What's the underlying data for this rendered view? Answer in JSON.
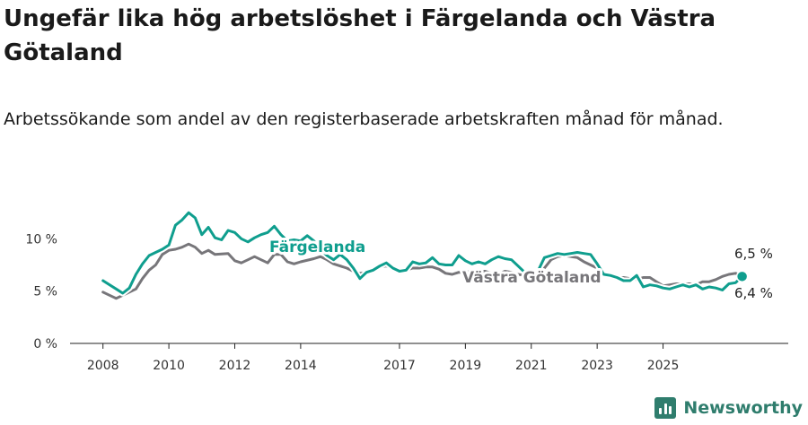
{
  "header": {
    "title": "Ungefär lika hög arbetslöshet i Färgelanda och Västra Götaland",
    "subtitle": "Arbetssökande som andel av den registerbaserade arbetskraften månad för månad."
  },
  "brand": {
    "name": "Newsworthy",
    "icon": "bar-chart-logo-icon"
  },
  "chart_data": {
    "type": "line",
    "y_ticks": [
      0,
      5,
      10
    ],
    "y_tick_labels": [
      "0 %",
      "5 %",
      "10 %"
    ],
    "ylim": [
      0,
      12
    ],
    "x_ticks": [
      2008,
      2010,
      2012,
      2014,
      2017,
      2019,
      2021,
      2023,
      2025
    ],
    "x_tick_labels": [
      "2008",
      "2010",
      "2012",
      "2014",
      "2017",
      "2019",
      "2021",
      "2023",
      "2025"
    ],
    "grid": "horizontal-baseline",
    "legend": "inline-labels",
    "colors": {
      "Färgelanda": "#0f9e8e",
      "Västra Götaland": "#77767a"
    },
    "series": [
      {
        "name": "Färgelanda",
        "end_label": "6,4 %",
        "points": [
          [
            2008.0,
            6.0
          ],
          [
            2008.4,
            5.2
          ],
          [
            2008.6,
            4.8
          ],
          [
            2008.8,
            5.3
          ],
          [
            2009.0,
            6.6
          ],
          [
            2009.2,
            7.6
          ],
          [
            2009.4,
            8.4
          ],
          [
            2009.6,
            8.7
          ],
          [
            2009.8,
            9.0
          ],
          [
            2010.0,
            9.4
          ],
          [
            2010.2,
            11.3
          ],
          [
            2010.4,
            11.8
          ],
          [
            2010.6,
            12.5
          ],
          [
            2010.8,
            12.0
          ],
          [
            2011.0,
            10.4
          ],
          [
            2011.2,
            11.1
          ],
          [
            2011.4,
            10.1
          ],
          [
            2011.6,
            9.9
          ],
          [
            2011.8,
            10.8
          ],
          [
            2012.0,
            10.6
          ],
          [
            2012.2,
            10.0
          ],
          [
            2012.4,
            9.7
          ],
          [
            2012.6,
            10.1
          ],
          [
            2012.8,
            10.4
          ],
          [
            2013.0,
            10.6
          ],
          [
            2013.2,
            11.2
          ],
          [
            2013.4,
            10.4
          ],
          [
            2013.6,
            9.8
          ],
          [
            2013.8,
            9.9
          ],
          [
            2014.0,
            9.8
          ],
          [
            2014.2,
            10.3
          ],
          [
            2014.4,
            9.8
          ],
          [
            2014.6,
            9.0
          ],
          [
            2014.8,
            8.4
          ],
          [
            2015.0,
            8.0
          ],
          [
            2015.2,
            8.5
          ],
          [
            2015.4,
            8.0
          ],
          [
            2015.6,
            7.2
          ],
          [
            2015.8,
            6.2
          ],
          [
            2016.0,
            6.8
          ],
          [
            2016.2,
            7.0
          ],
          [
            2016.4,
            7.4
          ],
          [
            2016.6,
            7.7
          ],
          [
            2016.8,
            7.2
          ],
          [
            2017.0,
            6.9
          ],
          [
            2017.2,
            7.0
          ],
          [
            2017.4,
            7.8
          ],
          [
            2017.6,
            7.6
          ],
          [
            2017.8,
            7.7
          ],
          [
            2018.0,
            8.2
          ],
          [
            2018.2,
            7.6
          ],
          [
            2018.4,
            7.5
          ],
          [
            2018.6,
            7.5
          ],
          [
            2018.8,
            8.4
          ],
          [
            2019.0,
            7.9
          ],
          [
            2019.2,
            7.6
          ],
          [
            2019.4,
            7.8
          ],
          [
            2019.6,
            7.6
          ],
          [
            2019.8,
            8.0
          ],
          [
            2020.0,
            8.3
          ],
          [
            2020.2,
            8.1
          ],
          [
            2020.4,
            8.0
          ],
          [
            2020.6,
            7.4
          ],
          [
            2020.8,
            6.8
          ],
          [
            2021.0,
            6.5
          ],
          [
            2021.2,
            6.9
          ],
          [
            2021.4,
            8.2
          ],
          [
            2021.6,
            8.4
          ],
          [
            2021.8,
            8.6
          ],
          [
            2022.0,
            8.5
          ],
          [
            2022.2,
            8.6
          ],
          [
            2022.4,
            8.7
          ],
          [
            2022.6,
            8.6
          ],
          [
            2022.8,
            8.5
          ],
          [
            2023.0,
            7.6
          ],
          [
            2023.2,
            6.6
          ],
          [
            2023.4,
            6.5
          ],
          [
            2023.6,
            6.3
          ],
          [
            2023.8,
            6.0
          ],
          [
            2024.0,
            6.0
          ],
          [
            2024.2,
            6.5
          ],
          [
            2024.4,
            5.4
          ],
          [
            2024.6,
            5.6
          ],
          [
            2024.8,
            5.5
          ],
          [
            2025.0,
            5.3
          ],
          [
            2025.2,
            5.2
          ],
          [
            2025.4,
            5.4
          ],
          [
            2025.6,
            5.6
          ],
          [
            2025.8,
            5.4
          ],
          [
            2026.0,
            5.6
          ],
          [
            2026.2,
            5.2
          ],
          [
            2026.4,
            5.4
          ],
          [
            2026.6,
            5.3
          ],
          [
            2026.8,
            5.1
          ],
          [
            2027.0,
            5.7
          ],
          [
            2027.2,
            5.8
          ],
          [
            2027.4,
            6.4
          ]
        ]
      },
      {
        "name": "Västra Götaland",
        "end_label": "6,5 %",
        "points": [
          [
            2008.0,
            4.9
          ],
          [
            2008.2,
            4.6
          ],
          [
            2008.4,
            4.3
          ],
          [
            2008.6,
            4.6
          ],
          [
            2008.8,
            4.9
          ],
          [
            2009.0,
            5.2
          ],
          [
            2009.2,
            6.2
          ],
          [
            2009.4,
            7.0
          ],
          [
            2009.6,
            7.5
          ],
          [
            2009.8,
            8.5
          ],
          [
            2010.0,
            8.9
          ],
          [
            2010.2,
            9.0
          ],
          [
            2010.4,
            9.2
          ],
          [
            2010.6,
            9.5
          ],
          [
            2010.8,
            9.2
          ],
          [
            2011.0,
            8.6
          ],
          [
            2011.2,
            8.9
          ],
          [
            2011.4,
            8.5
          ],
          [
            2011.8,
            8.6
          ],
          [
            2012.0,
            7.9
          ],
          [
            2012.2,
            7.7
          ],
          [
            2012.4,
            8.0
          ],
          [
            2012.6,
            8.3
          ],
          [
            2012.8,
            8.0
          ],
          [
            2013.0,
            7.7
          ],
          [
            2013.2,
            8.5
          ],
          [
            2013.4,
            8.5
          ],
          [
            2013.6,
            7.8
          ],
          [
            2013.8,
            7.6
          ],
          [
            2014.0,
            7.8
          ],
          [
            2014.4,
            8.1
          ],
          [
            2014.6,
            8.3
          ],
          [
            2014.8,
            8.0
          ],
          [
            2015.0,
            7.6
          ],
          [
            2015.4,
            7.2
          ],
          [
            2015.6,
            6.9
          ],
          [
            2015.8,
            6.7
          ],
          [
            2016.0,
            6.8
          ],
          [
            2016.2,
            7.0
          ],
          [
            2016.4,
            7.3
          ],
          [
            2016.6,
            7.4
          ],
          [
            2016.8,
            7.2
          ],
          [
            2017.0,
            6.9
          ],
          [
            2017.2,
            7.0
          ],
          [
            2017.4,
            7.2
          ],
          [
            2017.6,
            7.2
          ],
          [
            2017.8,
            7.3
          ],
          [
            2018.0,
            7.3
          ],
          [
            2018.2,
            7.1
          ],
          [
            2018.4,
            6.7
          ],
          [
            2018.6,
            6.6
          ],
          [
            2018.8,
            6.8
          ],
          [
            2019.0,
            6.8
          ],
          [
            2019.2,
            6.9
          ],
          [
            2019.4,
            6.9
          ],
          [
            2019.6,
            6.9
          ],
          [
            2019.8,
            6.7
          ],
          [
            2020.0,
            6.6
          ],
          [
            2020.2,
            6.9
          ],
          [
            2020.4,
            6.8
          ],
          [
            2020.6,
            6.6
          ],
          [
            2020.8,
            6.5
          ],
          [
            2021.0,
            6.2
          ],
          [
            2021.2,
            6.3
          ],
          [
            2021.4,
            7.2
          ],
          [
            2021.6,
            8.0
          ],
          [
            2021.8,
            8.3
          ],
          [
            2022.0,
            8.4
          ],
          [
            2022.2,
            8.3
          ],
          [
            2022.4,
            8.2
          ],
          [
            2022.6,
            7.8
          ],
          [
            2022.8,
            7.5
          ],
          [
            2023.0,
            7.2
          ],
          [
            2023.2,
            6.8
          ],
          [
            2023.4,
            6.5
          ],
          [
            2023.6,
            6.3
          ],
          [
            2023.8,
            6.3
          ],
          [
            2024.0,
            6.2
          ],
          [
            2024.2,
            6.1
          ],
          [
            2024.4,
            6.3
          ],
          [
            2024.6,
            6.3
          ],
          [
            2024.8,
            5.9
          ],
          [
            2025.0,
            5.5
          ],
          [
            2025.2,
            5.6
          ],
          [
            2025.4,
            5.7
          ],
          [
            2025.6,
            5.7
          ],
          [
            2025.8,
            5.7
          ],
          [
            2026.0,
            5.6
          ],
          [
            2026.2,
            5.9
          ],
          [
            2026.4,
            5.9
          ],
          [
            2026.6,
            6.1
          ],
          [
            2026.8,
            6.4
          ],
          [
            2027.0,
            6.6
          ],
          [
            2027.2,
            6.7
          ],
          [
            2027.4,
            6.5
          ]
        ]
      }
    ]
  }
}
